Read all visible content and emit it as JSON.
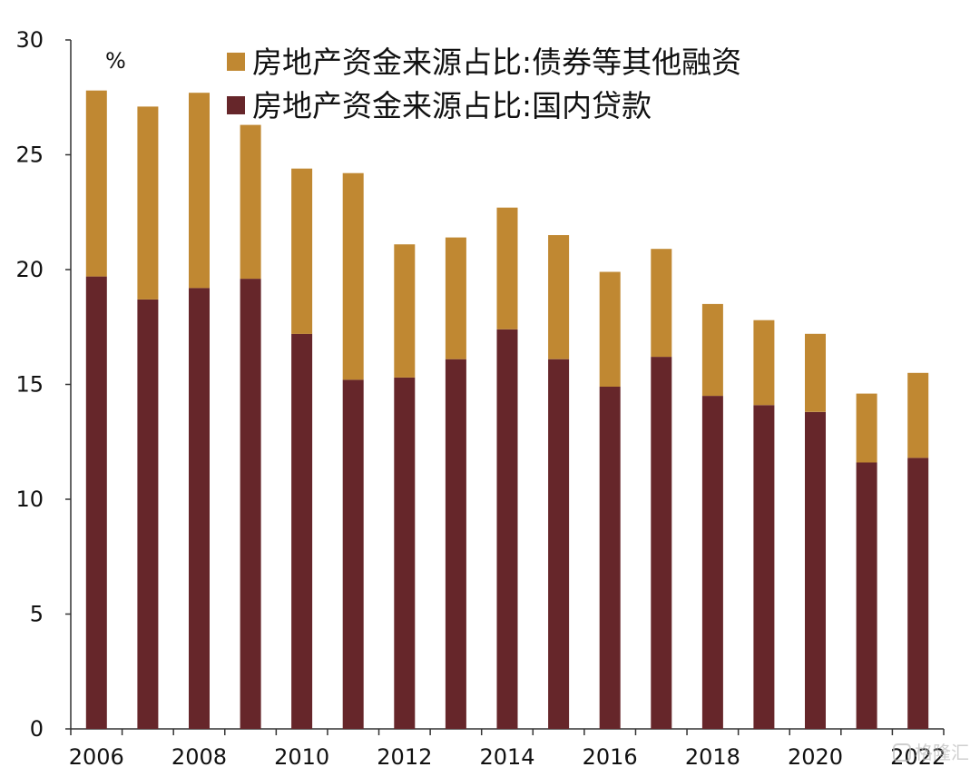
{
  "chart_data": {
    "type": "bar",
    "stacked": true,
    "title": "",
    "xlabel": "",
    "ylabel": "%",
    "ylim": [
      0,
      30
    ],
    "yticks": [
      0,
      5,
      10,
      15,
      20,
      25,
      30
    ],
    "categories": [
      "2006",
      "2007",
      "2008",
      "2009",
      "2010",
      "2011",
      "2012",
      "2013",
      "2014",
      "2015",
      "2016",
      "2017",
      "2018",
      "2019",
      "2020",
      "2021",
      "2022"
    ],
    "xtick_labels": [
      "2006",
      "2008",
      "2010",
      "2012",
      "2014",
      "2016",
      "2018",
      "2020",
      "2022"
    ],
    "legend_position": "top",
    "grid": false,
    "series": [
      {
        "name": "房地产资金来源占比:国内贷款",
        "color": "#66262a",
        "values": [
          19.7,
          18.7,
          19.2,
          19.6,
          17.2,
          15.2,
          15.3,
          16.1,
          17.4,
          16.1,
          14.9,
          16.2,
          14.5,
          14.1,
          13.8,
          11.6,
          11.8
        ]
      },
      {
        "name": "房地产资金来源占比:债券等其他融资",
        "color": "#c08832",
        "values": [
          8.1,
          8.4,
          8.5,
          6.7,
          7.2,
          9.0,
          5.8,
          5.3,
          5.3,
          5.4,
          5.0,
          4.7,
          4.0,
          3.7,
          3.4,
          3.0,
          3.7
        ]
      }
    ],
    "legend": [
      {
        "name": "房地产资金来源占比:债券等其他融资",
        "color": "#c08832"
      },
      {
        "name": "房地产资金来源占比:国内贷款",
        "color": "#66262a"
      }
    ]
  },
  "watermark": "格隆汇"
}
